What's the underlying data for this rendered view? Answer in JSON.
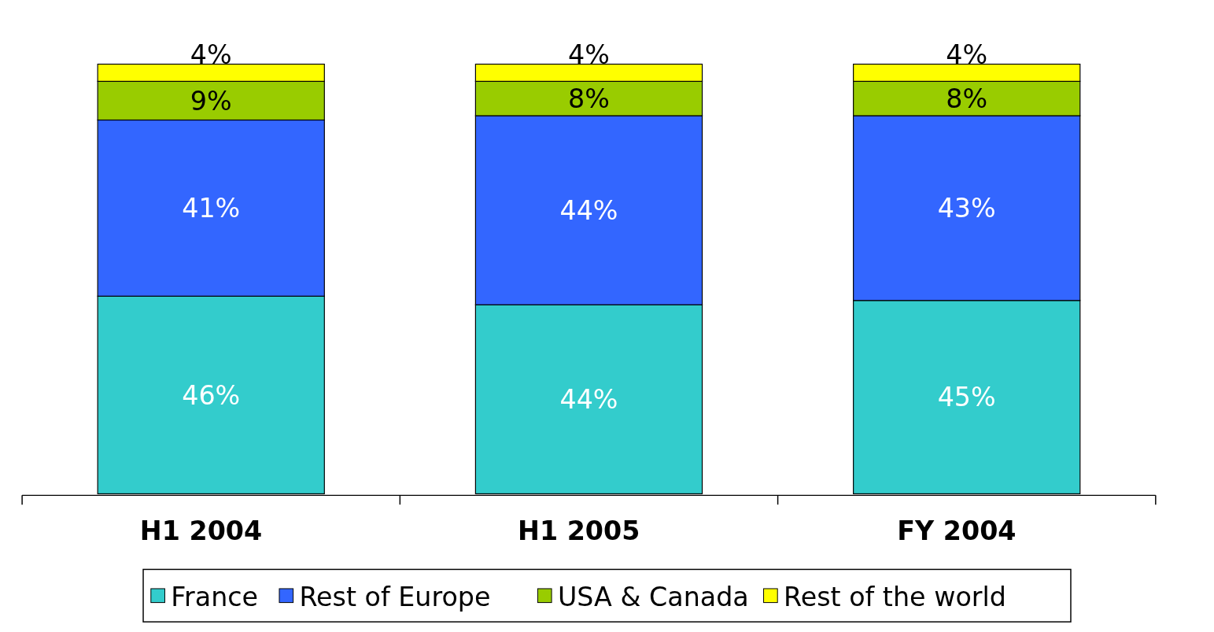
{
  "chart_data": {
    "type": "bar",
    "stacked": true,
    "legend": "bottom",
    "categories": [
      "H1 2004",
      "H1 2005",
      "FY 2004"
    ],
    "series": [
      {
        "name": "France",
        "color": "#33cccc",
        "values": [
          46,
          44,
          45
        ],
        "value_labels": [
          "46%",
          "44%",
          "45%"
        ]
      },
      {
        "name": "Rest of Europe",
        "color": "#3366ff",
        "values": [
          41,
          44,
          43
        ],
        "value_labels": [
          "41%",
          "44%",
          "43%"
        ]
      },
      {
        "name": "USA & Canada",
        "color": "#99cc00",
        "values": [
          9,
          8,
          8
        ],
        "value_labels": [
          "9%",
          "8%",
          "8%"
        ]
      },
      {
        "name": "Rest of the world",
        "color": "#ffff00",
        "values": [
          4,
          4,
          4
        ],
        "value_labels": [
          "4%",
          "4%",
          "4%"
        ]
      }
    ]
  }
}
